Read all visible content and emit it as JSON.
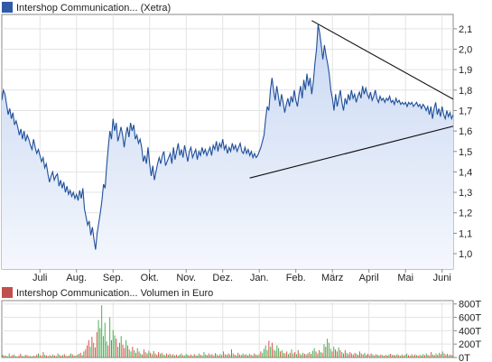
{
  "chart_data": [
    {
      "type": "line",
      "legend_text": "Intershop Communication... (Xetra)",
      "legend_color": "#2f5aa8",
      "line_color": "#1f4f9a",
      "area_fill_top": "#c9d8f2",
      "area_fill_bottom": "#f4f7fd",
      "grid": true,
      "y_axis_position": "right",
      "ylim": [
        0.925,
        2.17
      ],
      "yticks": [
        {
          "value": 1.0,
          "label": "1,0"
        },
        {
          "value": 1.1,
          "label": "1,1"
        },
        {
          "value": 1.2,
          "label": "1,2"
        },
        {
          "value": 1.3,
          "label": "1,3"
        },
        {
          "value": 1.4,
          "label": "1,4"
        },
        {
          "value": 1.5,
          "label": "1,5"
        },
        {
          "value": 1.6,
          "label": "1,6"
        },
        {
          "value": 1.7,
          "label": "1,7"
        },
        {
          "value": 1.8,
          "label": "1,8"
        },
        {
          "value": 1.9,
          "label": "1,9"
        },
        {
          "value": 2.0,
          "label": "2,0"
        },
        {
          "value": 2.1,
          "label": "2,1"
        }
      ],
      "x_labels": [
        "Juli",
        "Aug.",
        "Sep.",
        "Okt.",
        "Nov.",
        "Dez.",
        "Jan.",
        "Feb.",
        "März",
        "April",
        "Mai",
        "Juni"
      ],
      "x_label_index": [
        24,
        47,
        70,
        93,
        116,
        139,
        162,
        185,
        208,
        231,
        254,
        277
      ],
      "series": [
        {
          "values": [
            1.75,
            1.8,
            1.78,
            1.73,
            1.68,
            1.71,
            1.66,
            1.69,
            1.63,
            1.65,
            1.62,
            1.58,
            1.61,
            1.56,
            1.6,
            1.55,
            1.58,
            1.56,
            1.53,
            1.51,
            1.56,
            1.52,
            1.49,
            1.51,
            1.48,
            1.45,
            1.47,
            1.42,
            1.44,
            1.39,
            1.35,
            1.38,
            1.4,
            1.36,
            1.38,
            1.39,
            1.33,
            1.36,
            1.32,
            1.35,
            1.3,
            1.33,
            1.29,
            1.31,
            1.28,
            1.3,
            1.27,
            1.29,
            1.26,
            1.31,
            1.27,
            1.32,
            1.22,
            1.18,
            1.14,
            1.16,
            1.09,
            1.13,
            1.07,
            1.02,
            1.1,
            1.15,
            1.2,
            1.26,
            1.34,
            1.32,
            1.43,
            1.52,
            1.6,
            1.56,
            1.66,
            1.6,
            1.64,
            1.55,
            1.58,
            1.62,
            1.58,
            1.52,
            1.58,
            1.62,
            1.57,
            1.64,
            1.6,
            1.63,
            1.56,
            1.58,
            1.54,
            1.56,
            1.52,
            1.45,
            1.48,
            1.44,
            1.52,
            1.44,
            1.38,
            1.43,
            1.36,
            1.4,
            1.44,
            1.47,
            1.44,
            1.48,
            1.5,
            1.43,
            1.45,
            1.47,
            1.49,
            1.44,
            1.52,
            1.46,
            1.5,
            1.54,
            1.48,
            1.51,
            1.47,
            1.53,
            1.49,
            1.45,
            1.5,
            1.52,
            1.47,
            1.49,
            1.51,
            1.46,
            1.5,
            1.48,
            1.52,
            1.49,
            1.51,
            1.48,
            1.5,
            1.52,
            1.48,
            1.53,
            1.51,
            1.55,
            1.5,
            1.54,
            1.52,
            1.56,
            1.51,
            1.53,
            1.49,
            1.52,
            1.5,
            1.54,
            1.51,
            1.53,
            1.5,
            1.52,
            1.54,
            1.5,
            1.49,
            1.52,
            1.49,
            1.51,
            1.48,
            1.5,
            1.47,
            1.49,
            1.47,
            1.48,
            1.5,
            1.52,
            1.55,
            1.58,
            1.66,
            1.72,
            1.7,
            1.8,
            1.86,
            1.8,
            1.75,
            1.82,
            1.77,
            1.72,
            1.78,
            1.74,
            1.69,
            1.73,
            1.76,
            1.72,
            1.77,
            1.74,
            1.8,
            1.75,
            1.72,
            1.78,
            1.82,
            1.76,
            1.85,
            1.8,
            1.88,
            1.82,
            1.86,
            1.78,
            1.84,
            1.93,
            2.0,
            2.12,
            2.08,
            2.02,
            1.95,
            2.02,
            1.97,
            1.93,
            1.88,
            1.8,
            1.76,
            1.7,
            1.78,
            1.72,
            1.76,
            1.8,
            1.74,
            1.7,
            1.76,
            1.73,
            1.78,
            1.75,
            1.8,
            1.76,
            1.78,
            1.74,
            1.77,
            1.79,
            1.76,
            1.82,
            1.78,
            1.81,
            1.78,
            1.76,
            1.79,
            1.75,
            1.77,
            1.8,
            1.76,
            1.74,
            1.77,
            1.75,
            1.76,
            1.74,
            1.76,
            1.75,
            1.77,
            1.74,
            1.75,
            1.73,
            1.76,
            1.74,
            1.75,
            1.73,
            1.74,
            1.73,
            1.74,
            1.72,
            1.74,
            1.73,
            1.74,
            1.72,
            1.73,
            1.74,
            1.72,
            1.73,
            1.71,
            1.73,
            1.72,
            1.7,
            1.72,
            1.68,
            1.72,
            1.66,
            1.71,
            1.74,
            1.68,
            1.71,
            1.67,
            1.72,
            1.68,
            1.66,
            1.7,
            1.67,
            1.69,
            1.66,
            1.68
          ]
        }
      ],
      "trendlines": [
        {
          "x": [
            156,
            305
          ],
          "y": [
            1.37,
            1.665
          ],
          "color": "#111111"
        },
        {
          "x": [
            195,
            305
          ],
          "y": [
            2.14,
            1.665
          ],
          "color": "#111111"
        }
      ]
    },
    {
      "type": "bar",
      "legend_text": "Intershop Communication... Volumen in Euro",
      "legend_color": "#c0504d",
      "up_color": "#4caf50",
      "down_color": "#d9534f",
      "grid": true,
      "y_axis_position": "right",
      "ylim": [
        0,
        850
      ],
      "yticks": [
        {
          "value": 0,
          "label": "0T"
        },
        {
          "value": 200,
          "label": "200T"
        },
        {
          "value": 400,
          "label": "400T"
        },
        {
          "value": 600,
          "label": "600T"
        },
        {
          "value": 800,
          "label": "800T"
        }
      ],
      "values": [
        40,
        25,
        30,
        15,
        60,
        20,
        35,
        45,
        20,
        15,
        30,
        55,
        25,
        20,
        40,
        35,
        20,
        25,
        15,
        30,
        20,
        45,
        60,
        35,
        25,
        80,
        40,
        30,
        20,
        35,
        25,
        45,
        30,
        20,
        60,
        40,
        25,
        35,
        50,
        30,
        20,
        35,
        60,
        45,
        30,
        25,
        40,
        55,
        70,
        35,
        90,
        120,
        180,
        260,
        160,
        310,
        220,
        150,
        380,
        560,
        440,
        780,
        320,
        520,
        240,
        180,
        600,
        260,
        410,
        330,
        280,
        160,
        220,
        320,
        190,
        140,
        260,
        180,
        120,
        90,
        160,
        110,
        70,
        140,
        90,
        60,
        45,
        120,
        80,
        60,
        100,
        70,
        50,
        95,
        60,
        40,
        80,
        55,
        70,
        45,
        35,
        60,
        40,
        55,
        35,
        50,
        30,
        45,
        25,
        40,
        60,
        35,
        30,
        55,
        40,
        30,
        45,
        25,
        50,
        35,
        30,
        60,
        40,
        30,
        80,
        45,
        35,
        60,
        40,
        50,
        30,
        65,
        45,
        30,
        55,
        35,
        90,
        50,
        40,
        60,
        45,
        120,
        60,
        40,
        30,
        70,
        45,
        35,
        60,
        40,
        50,
        30,
        55,
        40,
        30,
        60,
        45,
        35,
        50,
        90,
        70,
        130,
        180,
        110,
        250,
        160,
        220,
        120,
        100,
        180,
        140,
        90,
        110,
        70,
        60,
        90,
        50,
        70,
        120,
        60,
        80,
        50,
        110,
        60,
        40,
        70,
        55,
        45,
        60,
        80,
        55,
        100,
        140,
        90,
        60,
        110,
        80,
        70,
        200,
        160,
        280,
        220,
        130,
        90,
        160,
        120,
        90,
        150,
        110,
        80,
        60,
        110,
        70,
        50,
        80,
        60,
        45,
        70,
        55,
        40,
        90,
        60,
        45,
        70,
        40,
        55,
        35,
        60,
        45,
        30,
        50,
        40,
        30,
        45,
        35,
        25,
        40,
        30,
        45,
        55,
        35,
        40,
        30,
        50,
        35,
        25,
        45,
        30,
        40,
        60,
        35,
        25,
        50,
        30,
        45,
        35,
        25,
        40,
        30,
        50,
        35,
        60,
        40,
        30,
        80,
        45,
        35,
        60,
        40,
        70,
        50,
        90,
        60,
        40,
        55,
        35,
        45,
        30
      ],
      "directions": [
        1,
        0,
        1,
        0,
        1,
        0,
        0,
        1,
        0,
        1,
        0,
        0,
        1,
        0,
        1,
        0,
        0,
        1,
        0,
        1,
        0,
        0,
        1,
        0,
        1,
        0,
        1,
        0,
        0,
        1,
        0,
        1,
        0,
        0,
        1,
        0,
        0,
        1,
        0,
        1,
        0,
        0,
        1,
        0,
        1,
        0,
        0,
        1,
        0,
        1,
        0,
        1,
        0,
        0,
        1,
        0,
        1,
        0,
        0,
        1,
        1,
        1,
        1,
        1,
        1,
        0,
        1,
        0,
        1,
        1,
        0,
        1,
        0,
        1,
        0,
        0,
        1,
        0,
        1,
        1,
        0,
        1,
        0,
        1,
        0,
        1,
        0,
        0,
        1,
        0,
        1,
        0,
        1,
        0,
        1,
        0,
        0,
        1,
        0,
        1,
        1,
        0,
        1,
        0,
        1,
        0,
        1,
        0,
        1,
        0,
        1,
        0,
        1,
        1,
        0,
        1,
        0,
        1,
        0,
        1,
        0,
        1,
        0,
        1,
        1,
        0,
        1,
        0,
        1,
        0,
        1,
        0,
        1,
        0,
        1,
        0,
        1,
        0,
        1,
        0,
        1,
        0,
        1,
        0,
        1,
        0,
        1,
        0,
        1,
        0,
        1,
        0,
        1,
        0,
        1,
        0,
        1,
        0,
        1,
        0,
        1,
        1,
        1,
        1,
        0,
        1,
        0,
        1,
        0,
        1,
        1,
        0,
        1,
        0,
        1,
        0,
        1,
        0,
        1,
        1,
        0,
        1,
        0,
        1,
        0,
        1,
        0,
        1,
        0,
        1,
        0,
        1,
        1,
        0,
        1,
        0,
        1,
        0,
        1,
        0,
        1,
        1,
        1,
        0,
        1,
        0,
        0,
        1,
        0,
        1,
        0,
        0,
        1,
        0,
        0,
        1,
        0,
        0,
        1,
        0,
        0,
        1,
        0,
        1,
        0,
        0,
        1,
        0,
        1,
        0,
        1,
        0,
        1,
        0,
        1,
        0,
        1,
        0,
        1,
        0,
        1,
        0,
        0,
        1,
        0,
        1,
        0,
        1,
        0,
        1,
        0,
        1,
        0,
        1,
        0,
        1,
        0,
        1,
        0,
        1,
        0,
        1,
        0,
        1,
        0,
        1,
        0,
        1,
        0,
        1,
        0,
        1,
        0,
        1,
        0,
        1,
        0,
        1,
        0,
        1,
        0,
        1,
        0,
        1,
        0,
        1,
        0,
        1,
        0,
        1,
        0
      ]
    }
  ]
}
